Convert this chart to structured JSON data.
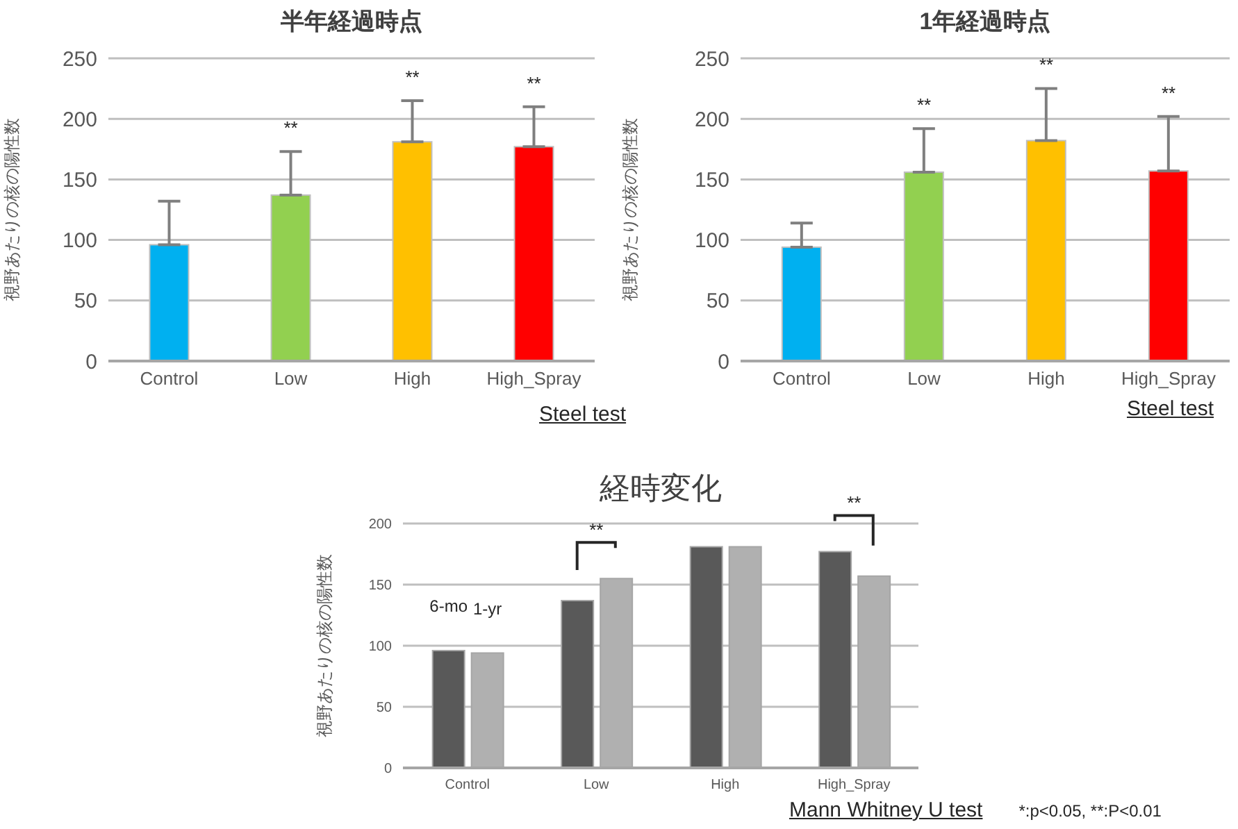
{
  "chart_data": [
    {
      "type": "bar",
      "title": "半年経過時点",
      "ylabel": "視野あたりの核の陽性数",
      "categories": [
        "Control",
        "Low",
        "High",
        "High_Spray"
      ],
      "values": [
        96,
        137,
        181,
        177
      ],
      "colors": [
        "#00b0f0",
        "#92d050",
        "#ffc000",
        "#ff0000"
      ],
      "errors": [
        [
          96,
          132
        ],
        [
          137,
          173
        ],
        [
          181,
          215
        ],
        [
          177,
          210
        ]
      ],
      "ylim": [
        0,
        250
      ],
      "yticks": [
        0,
        50,
        100,
        150,
        200,
        250
      ],
      "grid": "y",
      "legend": false,
      "annotations": [
        "Steel test",
        {
          "text": "**",
          "x": "Low",
          "y": 173
        },
        {
          "text": "**",
          "x": "High",
          "y": 215
        },
        {
          "text": "**",
          "x": "High_Spray",
          "y": 210
        }
      ]
    },
    {
      "type": "bar",
      "title": "1年経過時点",
      "ylabel": "視野あたりの核の陽性数",
      "categories": [
        "Control",
        "Low",
        "High",
        "High_Spray"
      ],
      "values": [
        94,
        156,
        182,
        157
      ],
      "colors": [
        "#00b0f0",
        "#92d050",
        "#ffc000",
        "#ff0000"
      ],
      "errors": [
        [
          94,
          114
        ],
        [
          156,
          192
        ],
        [
          182,
          225
        ],
        [
          157,
          202
        ]
      ],
      "ylim": [
        0,
        250
      ],
      "yticks": [
        0,
        50,
        100,
        150,
        200,
        250
      ],
      "grid": "y",
      "legend": false,
      "annotations": [
        "Steel test",
        {
          "text": "**",
          "x": "Low",
          "y": 192
        },
        {
          "text": "**",
          "x": "High",
          "y": 225
        },
        {
          "text": "**",
          "x": "High_Spray",
          "y": 202
        }
      ]
    },
    {
      "type": "bar",
      "title": "経時変化",
      "ylabel": "視野あたりの核の陽性数",
      "categories": [
        "Control",
        "Low",
        "High",
        "High_Spray"
      ],
      "series": [
        {
          "name": "6-mo",
          "color": "#595959",
          "values": [
            96,
            137,
            181,
            177
          ]
        },
        {
          "name": "1-yr",
          "color": "#b0b0b0",
          "values": [
            94,
            155,
            181,
            157
          ]
        }
      ],
      "ylim": [
        0,
        200
      ],
      "yticks": [
        0,
        50,
        100,
        150,
        200
      ],
      "grid": "y",
      "legend": false,
      "annotations": [
        "Mann Whitney U test",
        "*:p<0.05, **:P<0.01",
        {
          "text": "**",
          "x": "Low",
          "y": 155
        },
        {
          "text": "**",
          "x": "High_Spray",
          "y": 177
        }
      ]
    }
  ]
}
